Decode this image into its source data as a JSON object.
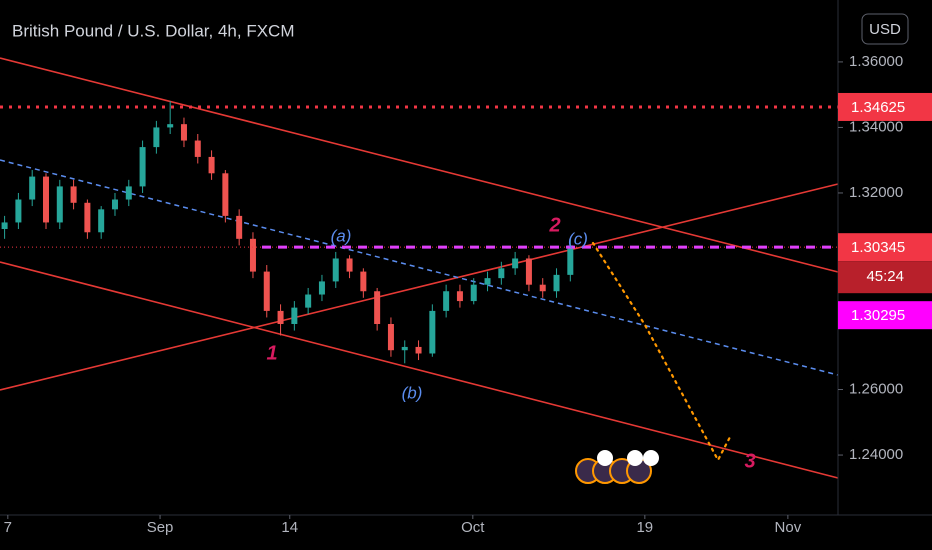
{
  "chart_data": {
    "type": "candlestick",
    "title": "British Pound / U.S. Dollar, 4h, FXCM",
    "currency": "USD",
    "up_color": "#26a69a",
    "down_color": "#ef5350",
    "x": [
      1,
      4,
      7,
      10,
      13,
      16,
      19,
      22,
      25,
      28,
      31,
      34,
      37,
      40,
      43,
      46,
      49,
      52,
      55,
      58,
      61,
      64,
      67,
      70,
      73,
      76,
      79,
      82,
      85,
      88,
      91,
      94,
      97,
      100,
      103,
      106,
      109,
      112,
      115,
      118,
      121,
      124
    ],
    "open": [
      1.309,
      1.311,
      1.318,
      1.325,
      1.311,
      1.322,
      1.317,
      1.308,
      1.315,
      1.318,
      1.322,
      1.334,
      1.34,
      1.341,
      1.336,
      1.331,
      1.326,
      1.313,
      1.306,
      1.296,
      1.284,
      1.28,
      1.285,
      1.289,
      1.293,
      1.3,
      1.296,
      1.29,
      1.28,
      1.272,
      1.273,
      1.271,
      1.284,
      1.29,
      1.287,
      1.292,
      1.294,
      1.297,
      1.3,
      1.292,
      1.29,
      1.295
    ],
    "high": [
      1.313,
      1.32,
      1.327,
      1.326,
      1.324,
      1.324,
      1.318,
      1.316,
      1.32,
      1.324,
      1.336,
      1.342,
      1.348,
      1.343,
      1.338,
      1.333,
      1.327,
      1.315,
      1.308,
      1.298,
      1.286,
      1.287,
      1.291,
      1.295,
      1.302,
      1.301,
      1.297,
      1.291,
      1.282,
      1.275,
      1.275,
      1.286,
      1.292,
      1.292,
      1.294,
      1.296,
      1.299,
      1.302,
      1.301,
      1.294,
      1.297,
      1.306
    ],
    "low": [
      1.306,
      1.309,
      1.316,
      1.309,
      1.309,
      1.315,
      1.306,
      1.306,
      1.313,
      1.316,
      1.32,
      1.332,
      1.338,
      1.334,
      1.329,
      1.324,
      1.311,
      1.304,
      1.294,
      1.282,
      1.2765,
      1.278,
      1.283,
      1.287,
      1.291,
      1.294,
      1.288,
      1.278,
      1.27,
      1.268,
      1.269,
      1.27,
      1.282,
      1.285,
      1.286,
      1.29,
      1.292,
      1.295,
      1.29,
      1.288,
      1.288,
      1.293
    ],
    "close": [
      1.311,
      1.318,
      1.325,
      1.311,
      1.322,
      1.317,
      1.308,
      1.315,
      1.318,
      1.322,
      1.334,
      1.34,
      1.341,
      1.336,
      1.331,
      1.326,
      1.313,
      1.306,
      1.296,
      1.284,
      1.28,
      1.285,
      1.289,
      1.293,
      1.3,
      1.296,
      1.29,
      1.28,
      1.272,
      1.273,
      1.271,
      1.284,
      1.29,
      1.287,
      1.292,
      1.294,
      1.297,
      1.3,
      1.292,
      1.29,
      1.295,
      1.304
    ],
    "xlim": [
      0,
      182.2
    ],
    "xticks": [
      {
        "value": 1.7,
        "label": "7"
      },
      {
        "value": 34.8,
        "label": "Sep"
      },
      {
        "value": 63,
        "label": "14"
      },
      {
        "value": 102.8,
        "label": "Oct"
      },
      {
        "value": 140.2,
        "label": "19"
      },
      {
        "value": 171.3,
        "label": "Nov"
      }
    ],
    "ylim": [
      1.2217,
      1.3789
    ],
    "yticks": [
      {
        "value": 1.24,
        "label": "1.24000"
      },
      {
        "value": 1.26,
        "label": "1.26000"
      },
      {
        "value": 1.32,
        "label": "1.32000"
      },
      {
        "value": 1.34,
        "label": "1.34000"
      },
      {
        "value": 1.36,
        "label": "1.36000"
      }
    ],
    "price_lines": [
      {
        "value": 1.34625,
        "color": "#f23645",
        "style": "dotted"
      },
      {
        "value": 1.30345,
        "color": "#f23645",
        "style": "current",
        "countdown": "45:24"
      },
      {
        "value": 1.30295,
        "color": "#ff00ff",
        "style": "none"
      }
    ],
    "wave_labels": [
      "1",
      "2",
      "3",
      "(a)",
      "(b)",
      "(c)"
    ]
  }
}
